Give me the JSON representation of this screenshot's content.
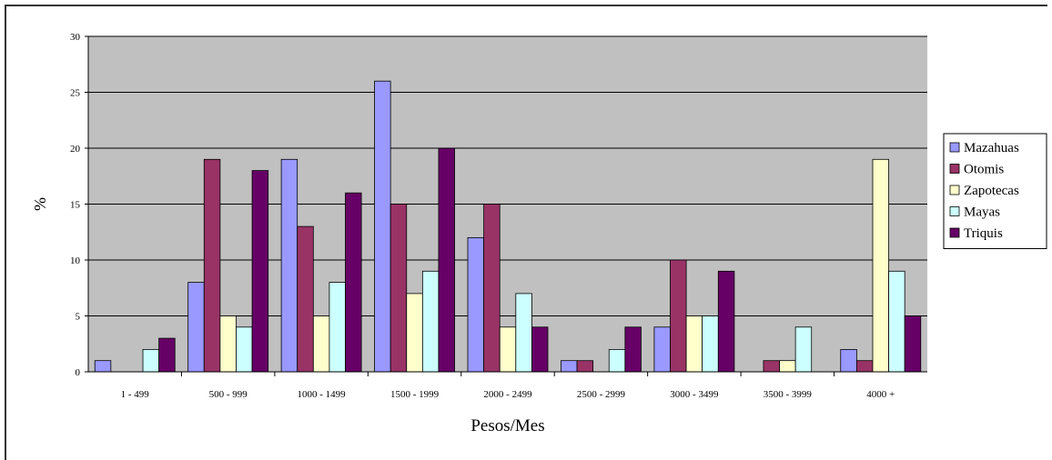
{
  "chart_data": {
    "type": "bar",
    "title": "",
    "xlabel": "Pesos/Mes",
    "ylabel": "%",
    "ylim": [
      0,
      30
    ],
    "yticks": [
      0,
      5,
      10,
      15,
      20,
      25,
      30
    ],
    "grid": true,
    "legend_position": "right",
    "plot_background": "#c0c0c0",
    "categories": [
      "1 - 499",
      "500 - 999",
      "1000 - 1499",
      "1500 - 1999",
      "2000 - 2499",
      "2500 - 2999",
      "3000 - 3499",
      "3500 - 3999",
      "4000 +"
    ],
    "series": [
      {
        "name": "Mazahuas",
        "color": "#9999ff",
        "values": [
          1,
          8,
          19,
          26,
          12,
          1,
          4,
          0,
          2
        ]
      },
      {
        "name": "Otomis",
        "color": "#993366",
        "values": [
          0,
          19,
          13,
          15,
          15,
          1,
          10,
          1,
          1
        ]
      },
      {
        "name": "Zapotecas",
        "color": "#ffffcc",
        "values": [
          0,
          5,
          5,
          7,
          4,
          0,
          5,
          1,
          19
        ]
      },
      {
        "name": "Mayas",
        "color": "#ccffff",
        "values": [
          2,
          4,
          8,
          9,
          7,
          2,
          5,
          4,
          9
        ]
      },
      {
        "name": "Triquis",
        "color": "#660066",
        "values": [
          3,
          18,
          16,
          20,
          4,
          4,
          9,
          0,
          5
        ]
      }
    ]
  }
}
